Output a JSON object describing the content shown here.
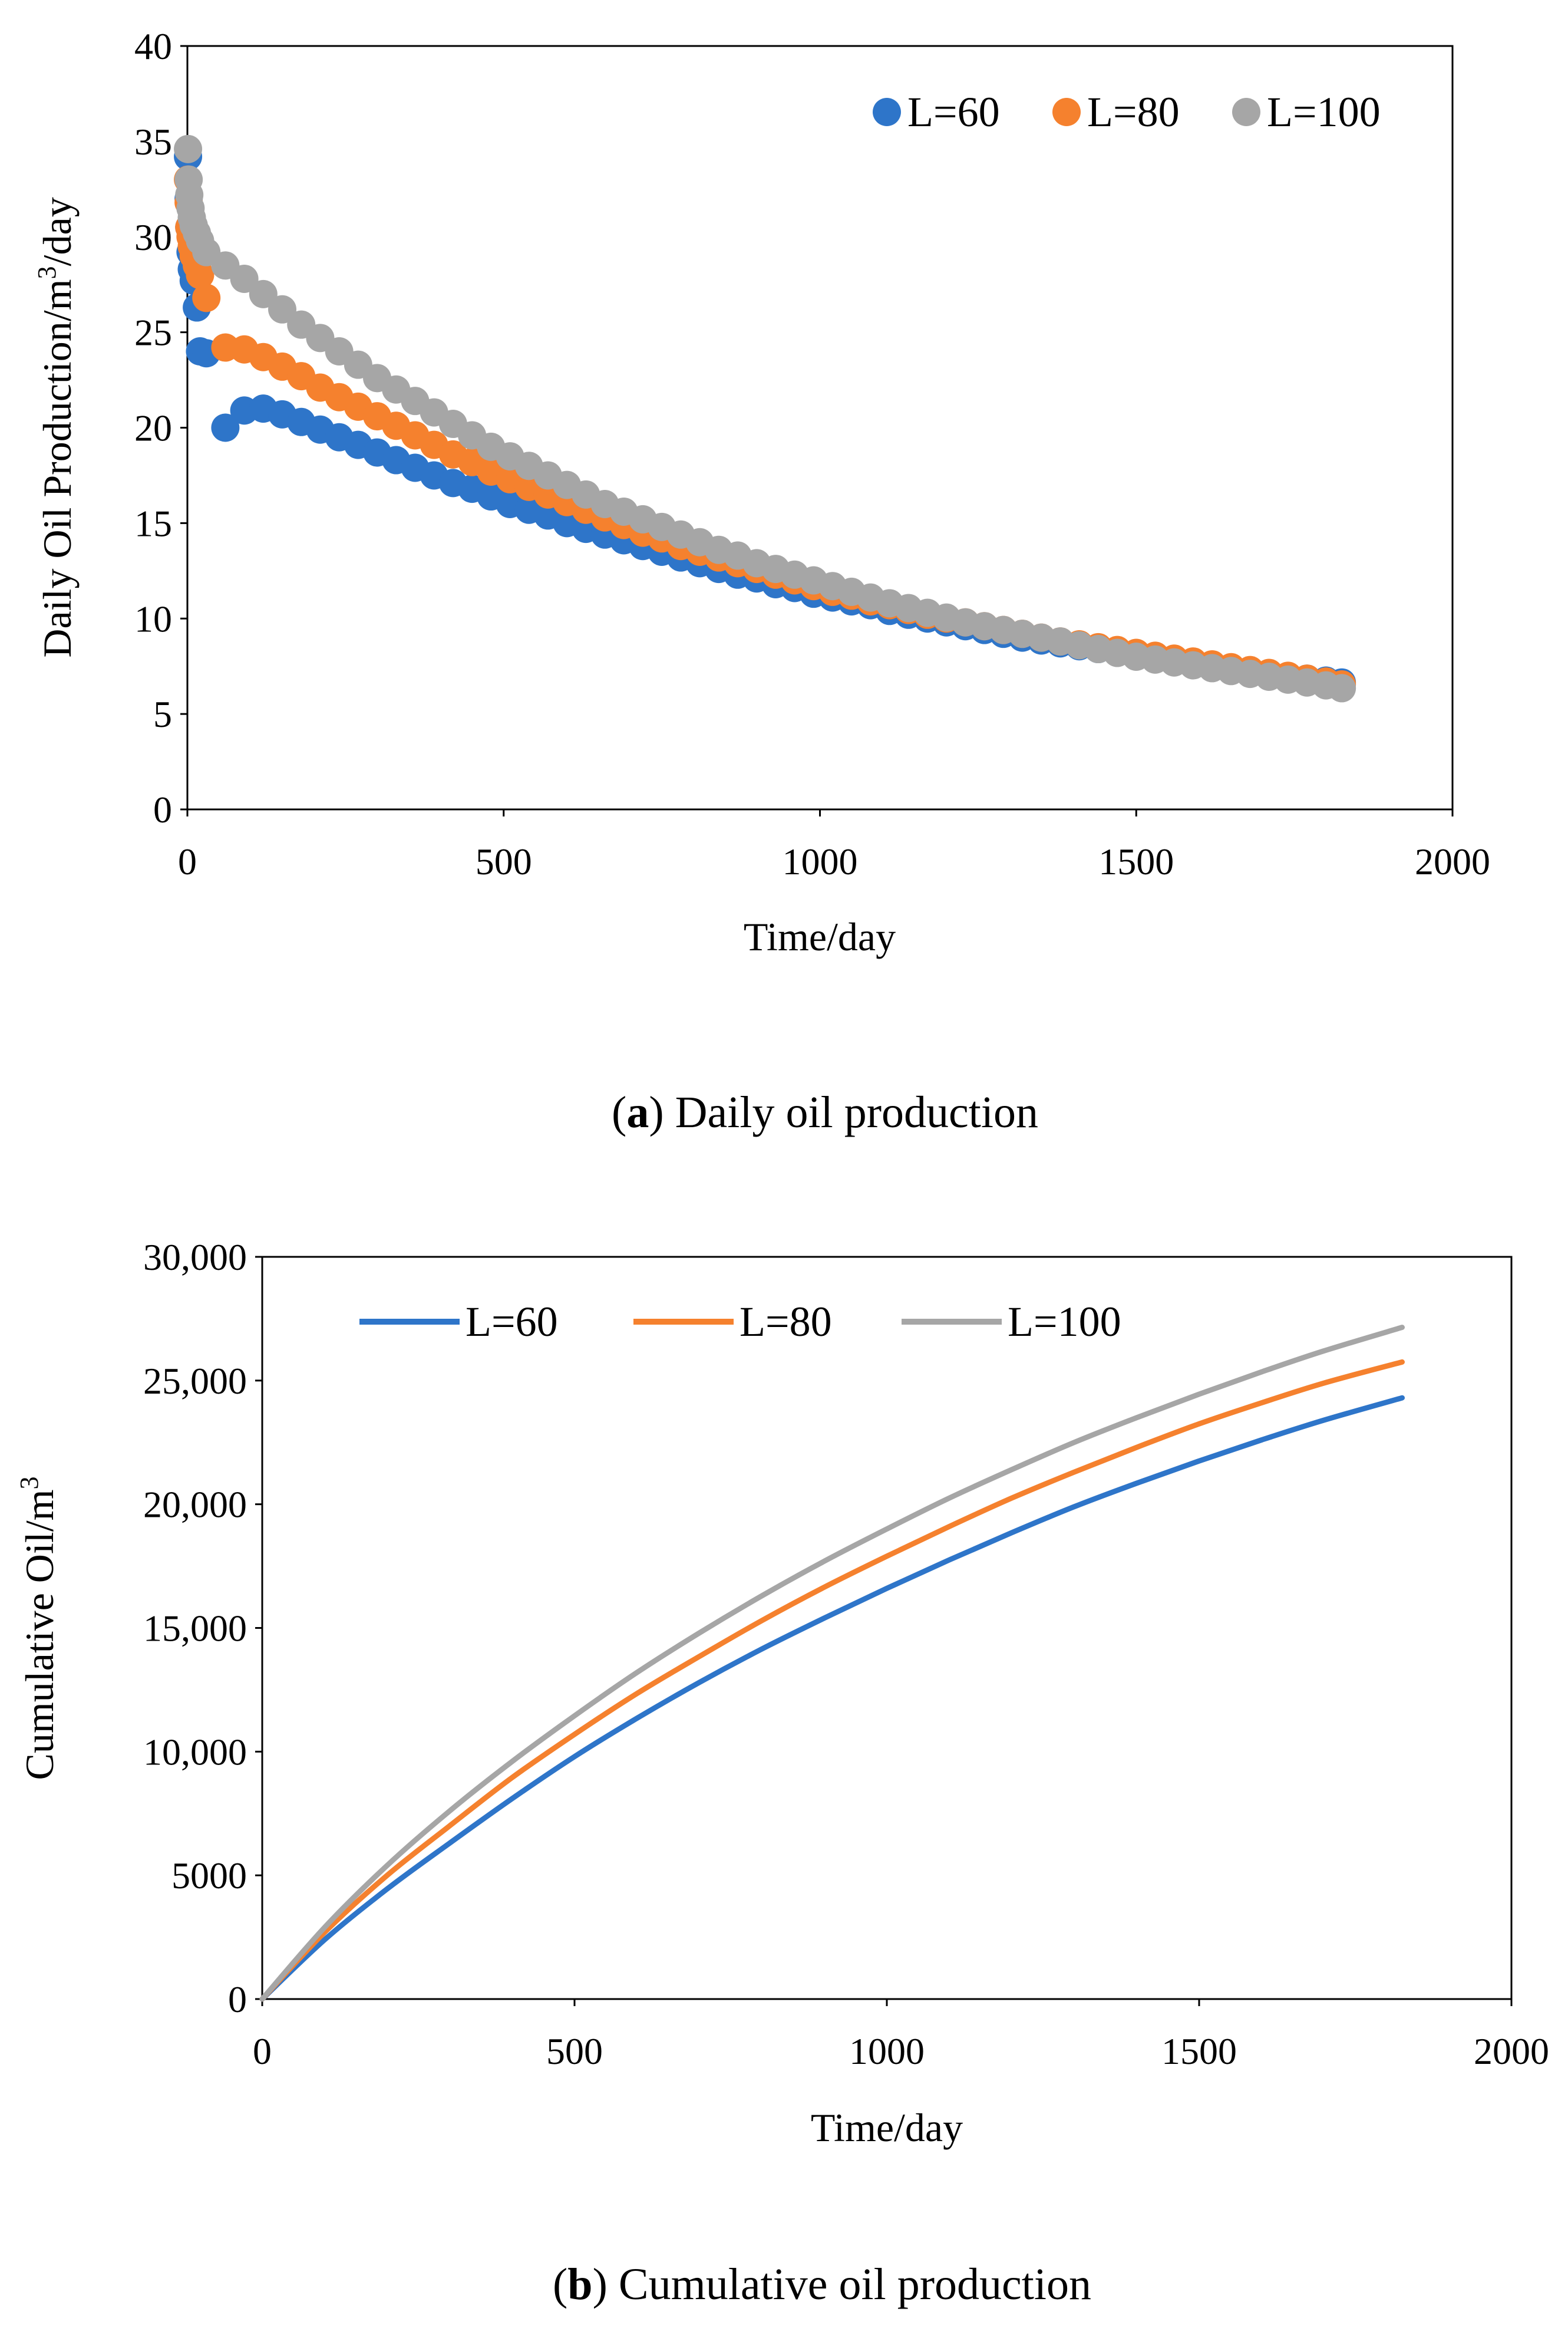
{
  "colors": {
    "L60": "#2e75c9",
    "L80": "#f5812e",
    "L100": "#a6a6a6",
    "axis": "#000000",
    "background": "#ffffff"
  },
  "captions": {
    "a": {
      "label": "a",
      "text": "Daily oil production"
    },
    "b": {
      "label": "b",
      "text": "Cumulative oil production"
    }
  },
  "chart_data": [
    {
      "type": "scatter",
      "xlabel": "Time/day",
      "ylabel_main": "Daily Oil Production/m",
      "ylabel_sup": "3",
      "ylabel_tail": "/day",
      "xlim": [
        0,
        2000
      ],
      "ylim": [
        0,
        40
      ],
      "xticks": [
        0,
        500,
        1000,
        1500,
        2000
      ],
      "yticks": [
        0,
        5,
        10,
        15,
        20,
        25,
        30,
        35,
        40
      ],
      "grid": false,
      "legend_position": "top-right",
      "series": [
        {
          "name": "L=60",
          "x": [
            1,
            2,
            3,
            5,
            7,
            10,
            15,
            20,
            30,
            60,
            90,
            120,
            150,
            180,
            210,
            240,
            270,
            300,
            330,
            360,
            390,
            420,
            450,
            480,
            510,
            540,
            570,
            600,
            630,
            660,
            690,
            720,
            750,
            780,
            810,
            840,
            870,
            900,
            930,
            960,
            990,
            1020,
            1050,
            1080,
            1110,
            1140,
            1170,
            1200,
            1230,
            1260,
            1290,
            1320,
            1350,
            1380,
            1410,
            1440,
            1470,
            1500,
            1530,
            1560,
            1590,
            1620,
            1650,
            1680,
            1710,
            1740,
            1770,
            1800,
            1825
          ],
          "y": [
            34.2,
            32.0,
            30.5,
            29.2,
            28.3,
            27.7,
            26.3,
            24.0,
            23.9,
            20.0,
            20.9,
            21.0,
            20.7,
            20.3,
            19.9,
            19.5,
            19.1,
            18.7,
            18.3,
            17.9,
            17.5,
            17.1,
            16.8,
            16.4,
            16.0,
            15.7,
            15.4,
            15.0,
            14.7,
            14.4,
            14.1,
            13.8,
            13.5,
            13.2,
            12.9,
            12.6,
            12.3,
            12.1,
            11.8,
            11.6,
            11.3,
            11.1,
            10.9,
            10.7,
            10.4,
            10.2,
            10.0,
            9.8,
            9.6,
            9.4,
            9.2,
            9.0,
            8.85,
            8.7,
            8.55,
            8.4,
            8.25,
            8.1,
            7.95,
            7.8,
            7.65,
            7.5,
            7.35,
            7.2,
            7.05,
            6.95,
            6.85,
            6.75,
            6.65
          ]
        },
        {
          "name": "L=80",
          "x": [
            1,
            2,
            3,
            5,
            7,
            10,
            15,
            20,
            30,
            60,
            90,
            120,
            150,
            180,
            210,
            240,
            270,
            300,
            330,
            360,
            390,
            420,
            450,
            480,
            510,
            540,
            570,
            600,
            630,
            660,
            690,
            720,
            750,
            780,
            810,
            840,
            870,
            900,
            930,
            960,
            990,
            1020,
            1050,
            1080,
            1110,
            1140,
            1170,
            1200,
            1230,
            1260,
            1290,
            1320,
            1350,
            1380,
            1410,
            1440,
            1470,
            1500,
            1530,
            1560,
            1590,
            1620,
            1650,
            1680,
            1710,
            1740,
            1770,
            1800,
            1825
          ],
          "y": [
            33.0,
            31.8,
            30.5,
            30.0,
            29.5,
            29.0,
            28.5,
            28.0,
            26.8,
            24.2,
            24.1,
            23.7,
            23.2,
            22.7,
            22.1,
            21.6,
            21.1,
            20.6,
            20.1,
            19.6,
            19.1,
            18.6,
            18.2,
            17.7,
            17.3,
            16.9,
            16.5,
            16.1,
            15.7,
            15.3,
            14.9,
            14.5,
            14.2,
            13.8,
            13.5,
            13.2,
            12.9,
            12.6,
            12.3,
            12.0,
            11.7,
            11.4,
            11.2,
            10.9,
            10.7,
            10.45,
            10.2,
            10.0,
            9.8,
            9.6,
            9.4,
            9.2,
            9.0,
            8.8,
            8.65,
            8.5,
            8.35,
            8.2,
            8.05,
            7.9,
            7.75,
            7.6,
            7.45,
            7.3,
            7.15,
            7.0,
            6.85,
            6.7,
            6.55
          ]
        },
        {
          "name": "L=100",
          "x": [
            1,
            2,
            3,
            5,
            7,
            10,
            15,
            20,
            30,
            60,
            90,
            120,
            150,
            180,
            210,
            240,
            270,
            300,
            330,
            360,
            390,
            420,
            450,
            480,
            510,
            540,
            570,
            600,
            630,
            660,
            690,
            720,
            750,
            780,
            810,
            840,
            870,
            900,
            930,
            960,
            990,
            1020,
            1050,
            1080,
            1110,
            1140,
            1170,
            1200,
            1230,
            1260,
            1290,
            1320,
            1350,
            1380,
            1410,
            1440,
            1470,
            1500,
            1530,
            1560,
            1590,
            1620,
            1650,
            1680,
            1710,
            1740,
            1770,
            1800,
            1825
          ],
          "y": [
            34.6,
            33.0,
            32.2,
            31.5,
            31.0,
            30.6,
            30.2,
            29.8,
            29.2,
            28.5,
            27.8,
            27.0,
            26.2,
            25.4,
            24.7,
            24.0,
            23.3,
            22.6,
            22.0,
            21.4,
            20.8,
            20.2,
            19.6,
            19.0,
            18.5,
            18.0,
            17.5,
            17.0,
            16.5,
            16.0,
            15.6,
            15.2,
            14.8,
            14.4,
            14.0,
            13.6,
            13.3,
            12.9,
            12.6,
            12.3,
            12.0,
            11.7,
            11.4,
            11.1,
            10.8,
            10.55,
            10.3,
            10.05,
            9.8,
            9.6,
            9.4,
            9.2,
            9.0,
            8.8,
            8.6,
            8.4,
            8.2,
            8.0,
            7.85,
            7.7,
            7.55,
            7.4,
            7.25,
            7.1,
            6.95,
            6.8,
            6.65,
            6.5,
            6.35
          ]
        }
      ]
    },
    {
      "type": "line",
      "xlabel": "Time/day",
      "ylabel_main": "Cumulative Oil/m",
      "ylabel_sup": "3",
      "ylabel_tail": "",
      "xlim": [
        0,
        2000
      ],
      "ylim": [
        0,
        30000
      ],
      "xticks": [
        0,
        500,
        1000,
        1500,
        2000
      ],
      "yticks": [
        0,
        5000,
        10000,
        15000,
        20000,
        25000,
        30000
      ],
      "ytick_labels": [
        "0",
        "5000",
        "10,000",
        "15,000",
        "20,000",
        "25,000",
        "30,000"
      ],
      "grid": false,
      "legend_position": "top",
      "series": [
        {
          "name": "L=60",
          "x": [
            0,
            100,
            200,
            300,
            400,
            500,
            600,
            700,
            800,
            900,
            1000,
            1100,
            1200,
            1300,
            1400,
            1500,
            1600,
            1700,
            1825
          ],
          "y": [
            0,
            2400,
            4450,
            6300,
            8100,
            9800,
            11350,
            12800,
            14150,
            15400,
            16600,
            17750,
            18850,
            19900,
            20850,
            21750,
            22600,
            23400,
            24300
          ]
        },
        {
          "name": "L=80",
          "x": [
            0,
            100,
            200,
            300,
            400,
            500,
            600,
            700,
            800,
            900,
            1000,
            1100,
            1200,
            1300,
            1400,
            1500,
            1600,
            1700,
            1825
          ],
          "y": [
            0,
            2700,
            5000,
            7000,
            8950,
            10700,
            12350,
            13850,
            15300,
            16650,
            17900,
            19100,
            20250,
            21300,
            22300,
            23250,
            24100,
            24900,
            25750
          ]
        },
        {
          "name": "L=100",
          "x": [
            0,
            100,
            200,
            300,
            400,
            500,
            600,
            700,
            800,
            900,
            1000,
            1100,
            1200,
            1300,
            1400,
            1500,
            1600,
            1700,
            1825
          ],
          "y": [
            0,
            2900,
            5400,
            7600,
            9600,
            11450,
            13200,
            14800,
            16300,
            17700,
            19000,
            20250,
            21400,
            22500,
            23500,
            24450,
            25350,
            26200,
            27150
          ]
        }
      ]
    }
  ]
}
